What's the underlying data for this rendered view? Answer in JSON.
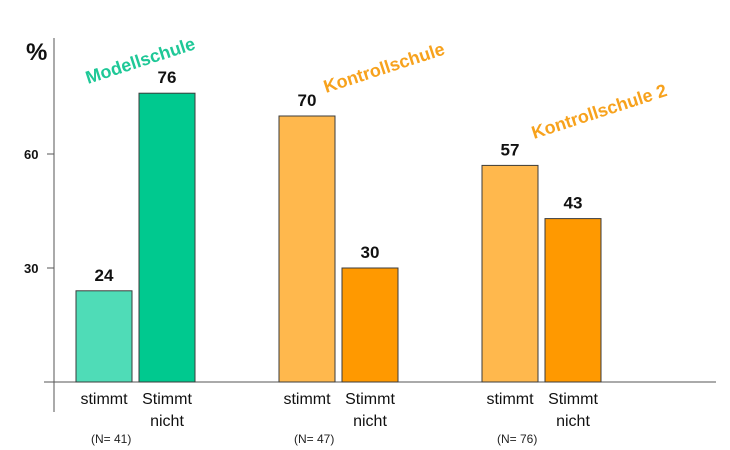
{
  "chart_data": {
    "type": "bar",
    "ylabel": "%",
    "yticks": [
      30,
      60
    ],
    "ylim": [
      0,
      90
    ],
    "groups": [
      {
        "title": "Modellschule",
        "title_color": "#1fc897",
        "n_label": "(N= 41)",
        "bars": [
          {
            "label_line1": "stimmt",
            "label_line2": "",
            "value": 24,
            "color": "#4fdcb7"
          },
          {
            "label_line1": "Stimmt",
            "label_line2": "nicht",
            "value": 76,
            "color": "#00c98f"
          }
        ]
      },
      {
        "title": "Kontrollschule",
        "title_color": "#f7a21d",
        "n_label": "(N= 47)",
        "bars": [
          {
            "label_line1": "stimmt",
            "label_line2": "",
            "value": 70,
            "color": "#ffb84d"
          },
          {
            "label_line1": "Stimmt",
            "label_line2": "nicht",
            "value": 30,
            "color": "#ff9900"
          }
        ]
      },
      {
        "title": "Kontrollschule 2",
        "title_color": "#f7a21d",
        "n_label": "(N= 76)",
        "bars": [
          {
            "label_line1": "stimmt",
            "label_line2": "",
            "value": 57,
            "color": "#ffb84d"
          },
          {
            "label_line1": "Stimmt",
            "label_line2": "nicht",
            "value": 43,
            "color": "#ff9900"
          }
        ]
      }
    ]
  }
}
